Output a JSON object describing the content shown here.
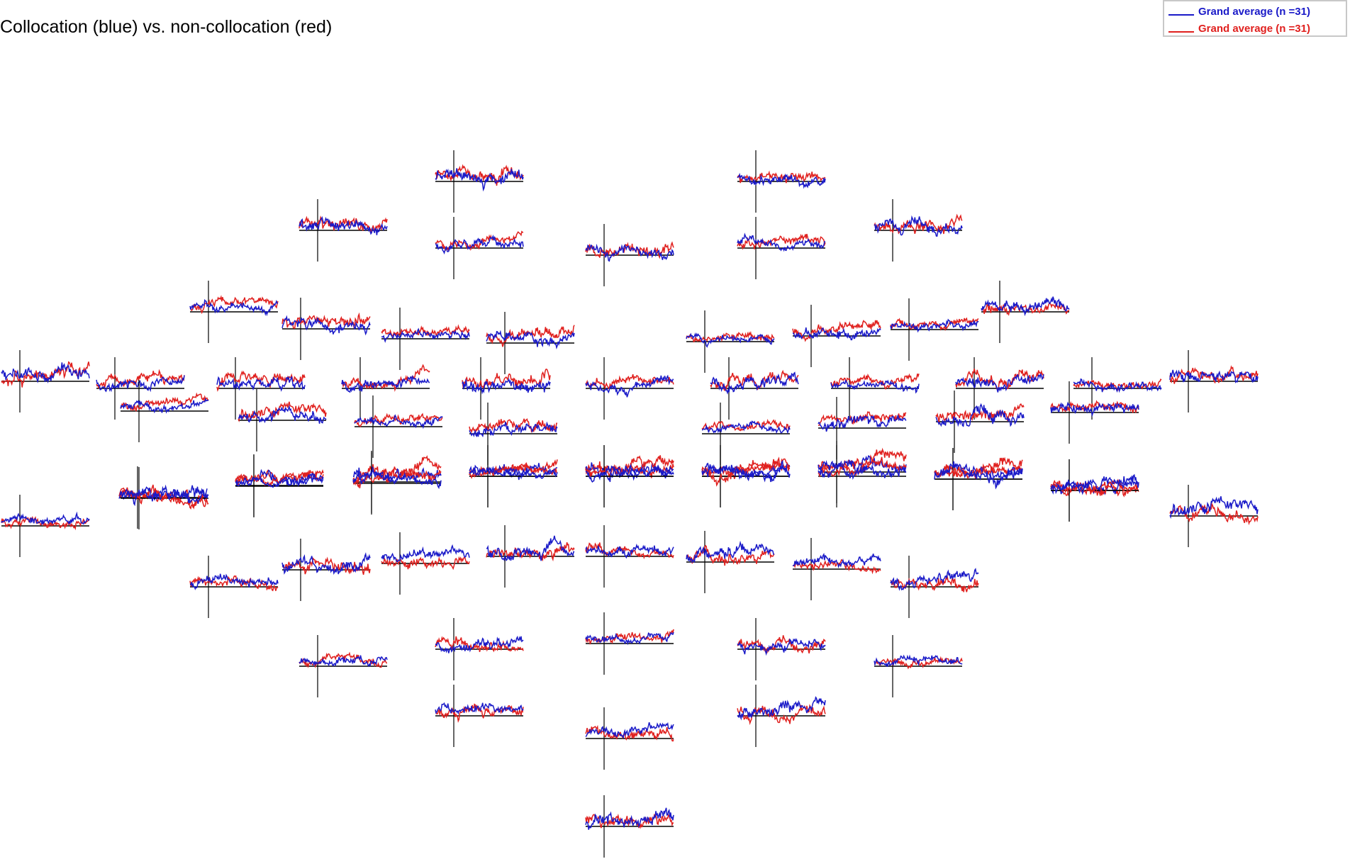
{
  "title": "Collocation (blue) vs. non-collocation (red)",
  "legend": {
    "entries": [
      {
        "label": "Grand average (n =31)",
        "color": "#1a1ac8"
      },
      {
        "label": "Grand average (n =31)",
        "color": "#e0201e"
      }
    ]
  },
  "colors": {
    "blue": "#1a1ac8",
    "red": "#e0201e",
    "axis": "#000000"
  },
  "chart_data": {
    "type": "line",
    "title": "Collocation (blue) vs. non-collocation (red)",
    "xlabel": "",
    "ylabel": "",
    "layout": "topographic multiplot (small waveform per electrode)",
    "panel_count": 66,
    "series": [
      {
        "name": "Grand average (n =31)",
        "color": "blue"
      },
      {
        "name": "Grand average (n =31)",
        "color": "red"
      }
    ]
  }
}
